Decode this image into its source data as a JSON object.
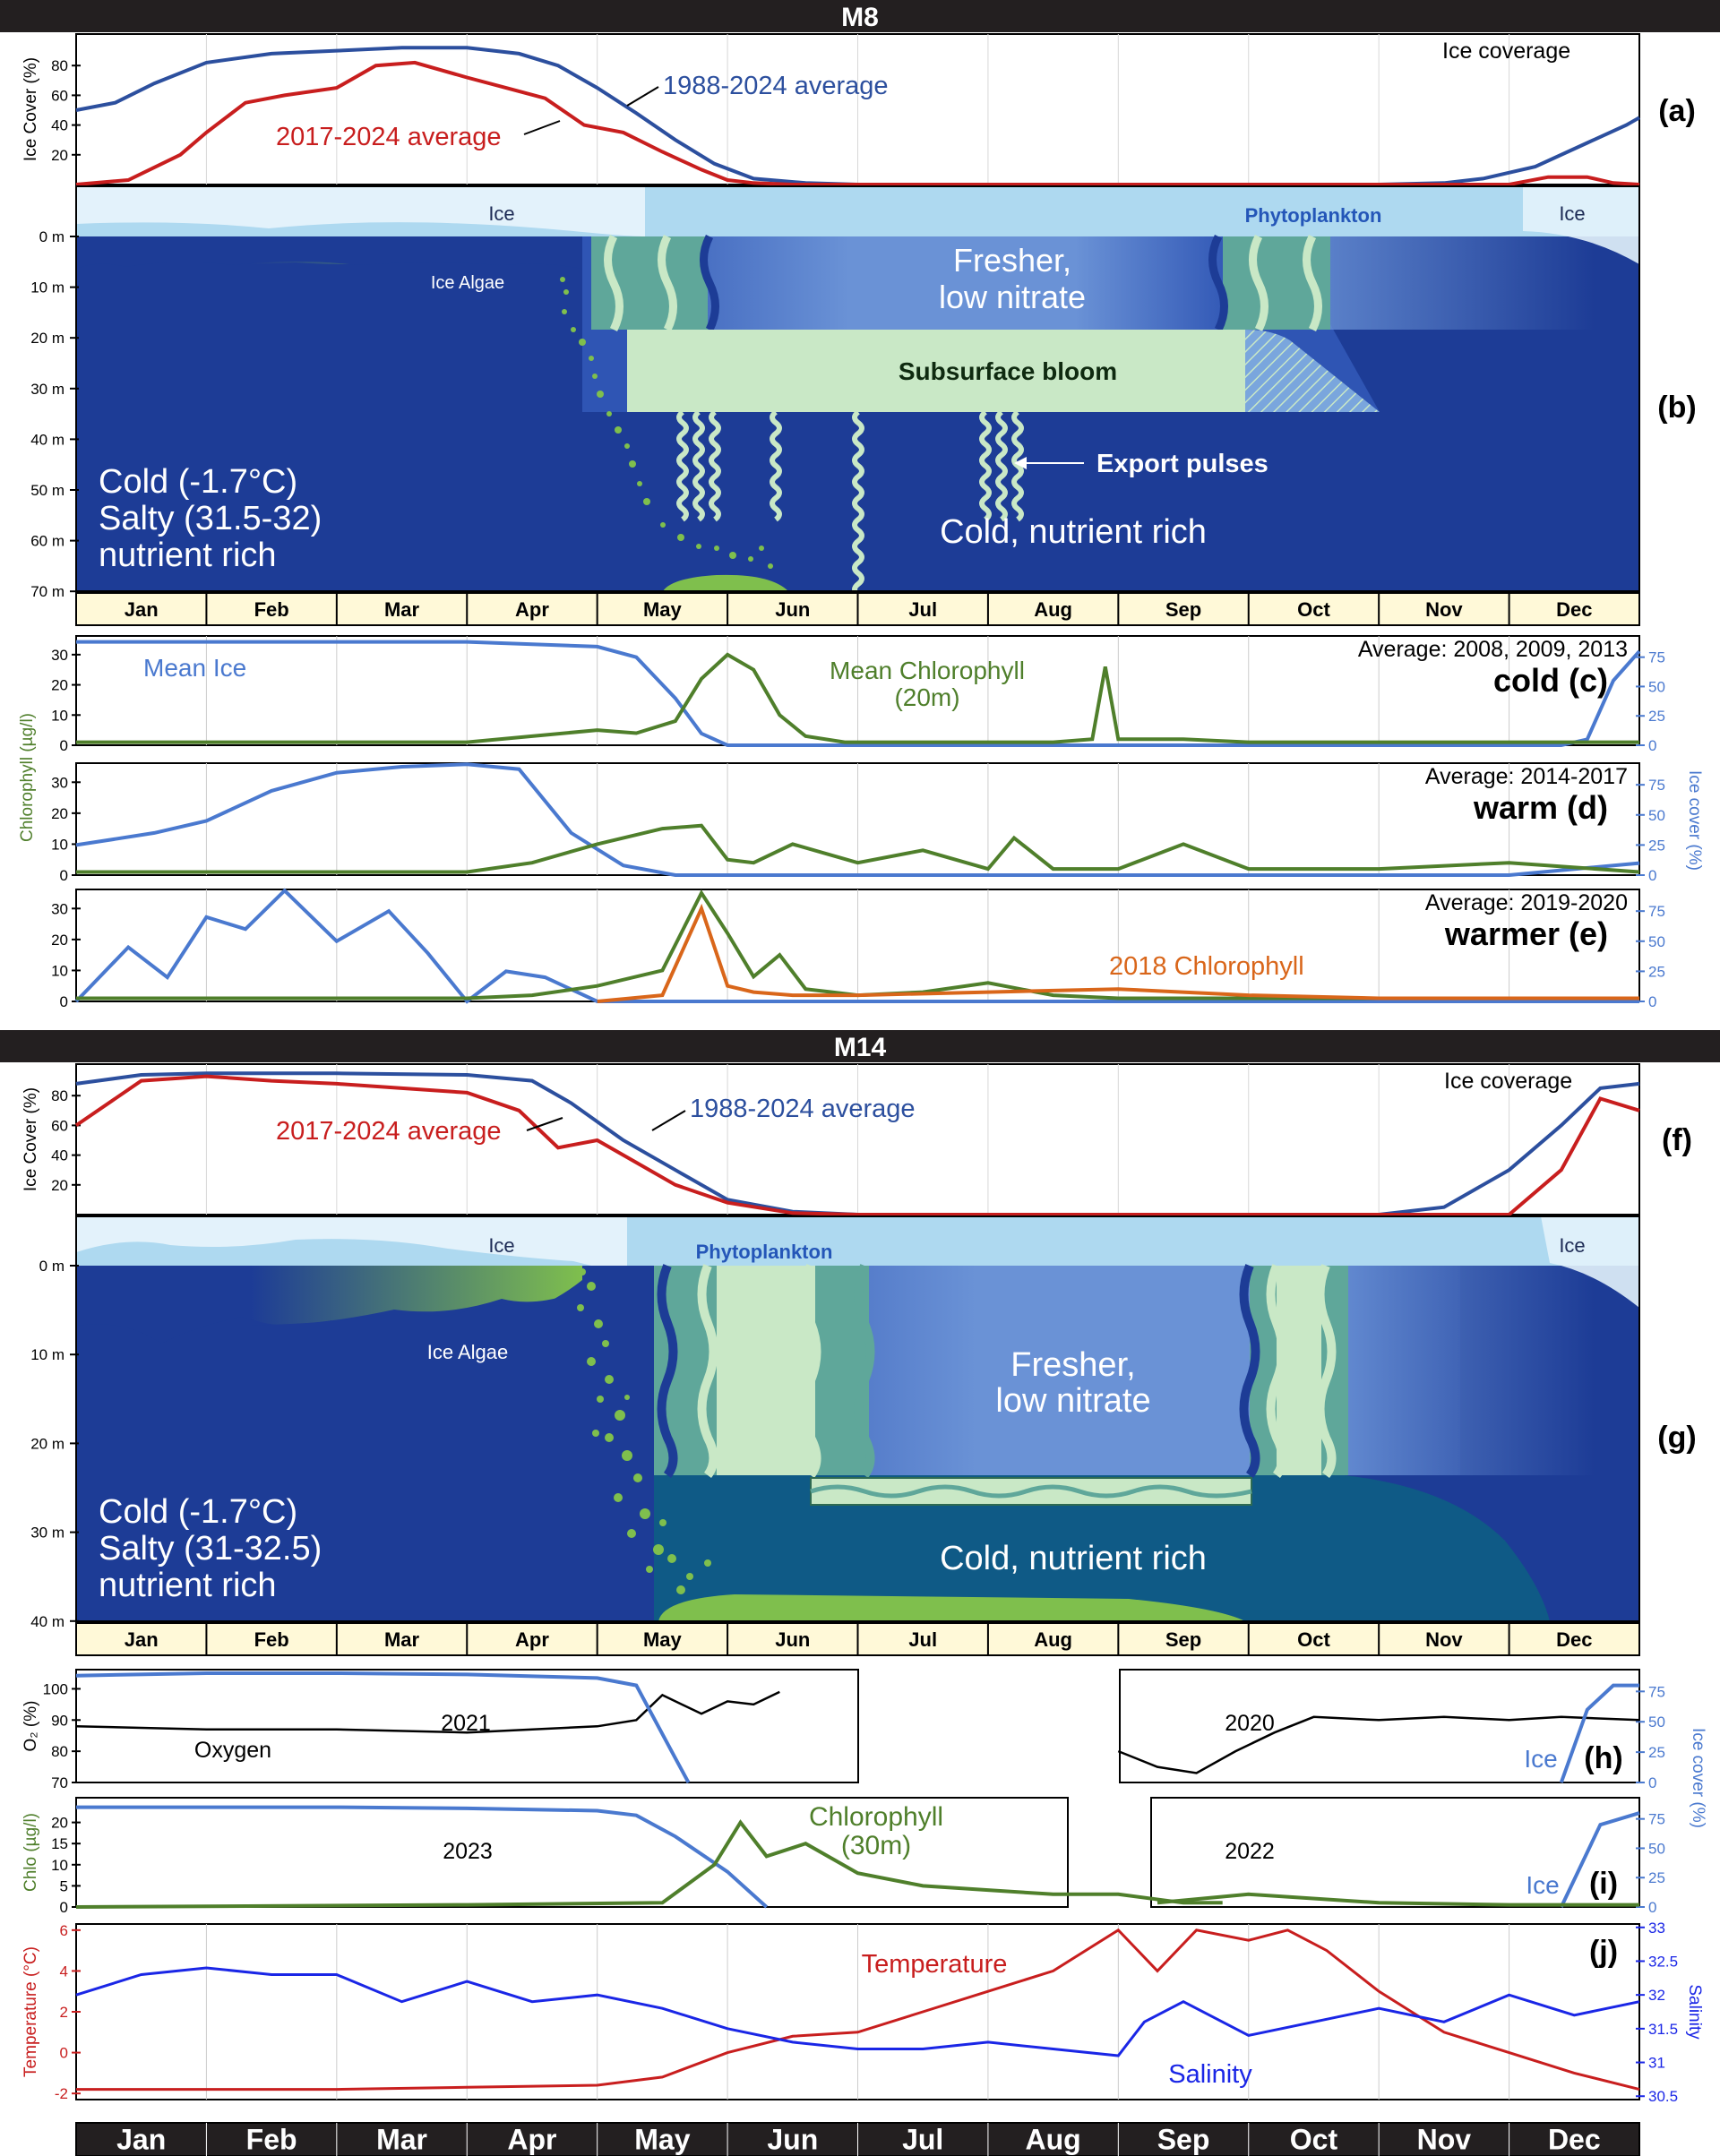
{
  "months": [
    "Jan",
    "Feb",
    "Mar",
    "Apr",
    "May",
    "Jun",
    "Jul",
    "Aug",
    "Sep",
    "Oct",
    "Nov",
    "Dec"
  ],
  "colors": {
    "deep_blue": "#1d3c96",
    "mid_blue": "#2f55b4",
    "light_blue": "#6c97d8",
    "ice_blue": "#aed9f0",
    "ice_pale": "#e3f2fb",
    "algae_green": "#7fbf4d",
    "bloom_green": "#c9e8c6",
    "teal": "#5fa79a",
    "red": "#c81e1e",
    "avg_blue": "#2c4f9e",
    "chl_green": "#4f7f2b",
    "ice_line": "#4a79cf",
    "orange": "#d9661a",
    "salinity_blue": "#1a26e6",
    "banner": "#231f20"
  },
  "m8": {
    "station": "M8",
    "panel_a": {
      "label": "(a)",
      "ylabel": "Ice Cover (%)",
      "yticks": [
        "80",
        "60",
        "40",
        "20"
      ],
      "corner_text": "Ice coverage",
      "legend_recent": "2017-2024 average",
      "legend_long": "1988-2024 average"
    },
    "panel_b": {
      "label": "(b)",
      "depth_ticks": [
        "0 m",
        "10 m",
        "20 m",
        "30 m",
        "40 m",
        "50 m",
        "60 m",
        "70 m"
      ],
      "ice_left": "Ice",
      "ice_right": "Ice",
      "phyto": "Phytoplankton",
      "ice_algae": "Ice Algae",
      "fresher_1": "Fresher,",
      "fresher_2": "low nitrate",
      "subsurface": "Subsurface bloom",
      "export": "Export pulses",
      "deep_text": "Cold, nutrient rich",
      "cond_1": "Cold (-1.7°C)",
      "cond_2": "Salty (31.5-32)",
      "cond_3": "nutrient rich"
    },
    "panel_c": {
      "label": "cold  (c)",
      "average": "Average: 2008, 2009, 2013",
      "mean_ice": "Mean Ice",
      "chl_1": "Mean Chlorophyll",
      "chl_2": "(20m)"
    },
    "panel_d": {
      "label": "warm (d)",
      "average": "Average: 2014-2017"
    },
    "panel_e": {
      "label": "warmer (e)",
      "average": "Average: 2019-2020",
      "chl_2018": "2018 Chlorophyll"
    },
    "chl_yticks": [
      "30",
      "20",
      "10",
      "0"
    ],
    "ice_yticks": [
      "75",
      "50",
      "25",
      "0"
    ],
    "ylabel_left": "Chlorophyll (µg/l)",
    "ylabel_right": "Ice cover (%)"
  },
  "m14": {
    "station": "M14",
    "panel_f": {
      "label": "(f)",
      "ylabel": "Ice Cover (%)",
      "yticks": [
        "80",
        "60",
        "40",
        "20"
      ],
      "corner_text": "Ice coverage",
      "legend_recent": "2017-2024 average",
      "legend_long": "1988-2024 average"
    },
    "panel_g": {
      "label": "(g)",
      "depth_ticks": [
        "0 m",
        "10 m",
        "20 m",
        "30 m",
        "40 m"
      ],
      "ice_left": "Ice",
      "ice_right": "Ice",
      "phyto": "Phytoplankton",
      "ice_algae": "Ice Algae",
      "fresher_1": "Fresher,",
      "fresher_2": "low nitrate",
      "deep_text": "Cold, nutrient rich",
      "cond_1": "Cold (-1.7°C)",
      "cond_2": "Salty (31-32.5)",
      "cond_3": "nutrient rich"
    },
    "panel_h": {
      "label": "(h)",
      "ylabel": "O₂ (%)",
      "yticks": [
        "100",
        "90",
        "80",
        "70"
      ],
      "year_left": "2021",
      "year_right": "2020",
      "oxygen": "Oxygen",
      "ice": "Ice"
    },
    "panel_i": {
      "label": "(i)",
      "ylabel": "Chlo (µg/l)",
      "yticks": [
        "20",
        "15",
        "10",
        "5",
        "0"
      ],
      "year_left": "2023",
      "year_right": "2022",
      "chl_1": "Chlorophyll",
      "chl_2": "(30m)",
      "ice": "Ice"
    },
    "ice_right_label": "Ice cover (%)",
    "ice_yticks_h": [
      "75",
      "50",
      "25",
      "0"
    ],
    "ice_yticks_i": [
      "75",
      "50",
      "25",
      "0"
    ],
    "panel_j": {
      "label": "(j)",
      "ylabel_left": "Temperature (°C)",
      "ylabel_right": "Salinity",
      "temp_ticks": [
        "6",
        "4",
        "2",
        "0",
        "-2"
      ],
      "sal_ticks": [
        "33",
        "32.5",
        "32",
        "31.5",
        "31",
        "30.5"
      ],
      "temperature": "Temperature",
      "salinity": "Salinity"
    }
  },
  "chart_data": [
    {
      "type": "line",
      "title": "M8 (a) Ice coverage",
      "ylabel": "Ice Cover (%)",
      "ylim": [
        0,
        100
      ],
      "x_unit": "month (1=Jan ... 13=end of Dec)",
      "series": [
        {
          "name": "1988-2024 average",
          "x": [
            1,
            1.3,
            1.6,
            2,
            2.5,
            3,
            3.5,
            4,
            4.4,
            4.7,
            5,
            5.3,
            5.6,
            5.9,
            6.2,
            6.6,
            7,
            8,
            9,
            10,
            11,
            11.5,
            11.8,
            12.2,
            12.6,
            12.9,
            13
          ],
          "y": [
            50,
            55,
            68,
            82,
            88,
            90,
            92,
            92,
            88,
            80,
            65,
            48,
            30,
            14,
            4,
            1,
            0,
            0,
            0,
            0,
            0,
            1,
            4,
            12,
            28,
            40,
            45
          ]
        },
        {
          "name": "2017-2024 average",
          "x": [
            1,
            1.4,
            1.8,
            2,
            2.3,
            2.6,
            3,
            3.3,
            3.6,
            4,
            4.3,
            4.6,
            4.9,
            5.2,
            5.5,
            5.8,
            6,
            6.2,
            6.5,
            7,
            8,
            9,
            10,
            11,
            12,
            12.3,
            12.6,
            12.8,
            13
          ],
          "y": [
            0,
            3,
            20,
            35,
            55,
            60,
            65,
            80,
            82,
            72,
            65,
            58,
            40,
            35,
            22,
            10,
            3,
            1,
            0,
            0,
            0,
            0,
            0,
            0,
            0,
            5,
            5,
            1,
            0
          ]
        }
      ]
    },
    {
      "type": "line",
      "title": "M8 (c) cold — Average: 2008, 2009, 2013",
      "ylabel": "Chlorophyll (µg/l)",
      "ylim": [
        0,
        35
      ],
      "y2label": "Ice cover (%)",
      "y2lim": [
        0,
        90
      ],
      "series": [
        {
          "name": "Mean Ice",
          "axis": "right",
          "x": [
            1,
            2,
            3,
            4,
            5,
            5.3,
            5.6,
            5.8,
            6,
            7,
            12,
            12.4,
            12.6,
            12.8,
            13
          ],
          "y": [
            88,
            88,
            88,
            88,
            84,
            75,
            40,
            10,
            0,
            0,
            0,
            0,
            5,
            55,
            80
          ]
        },
        {
          "name": "Mean Chlorophyll (20m)",
          "axis": "left",
          "x": [
            1,
            2,
            3,
            4,
            4.5,
            5,
            5.3,
            5.6,
            5.8,
            6,
            6.2,
            6.4,
            6.6,
            6.9,
            7.5,
            8.5,
            8.8,
            8.9,
            9,
            9.5,
            10,
            11,
            12,
            13
          ],
          "y": [
            1,
            1,
            1,
            1,
            3,
            5,
            4,
            8,
            22,
            30,
            25,
            10,
            3,
            1,
            1,
            1,
            2,
            26,
            2,
            2,
            1,
            1,
            1,
            1
          ]
        }
      ]
    },
    {
      "type": "line",
      "title": "M8 (d) warm — Average: 2014-2017",
      "ylabel": "Chlorophyll (µg/l)",
      "ylim": [
        0,
        35
      ],
      "y2label": "Ice cover (%)",
      "y2lim": [
        0,
        90
      ],
      "series": [
        {
          "name": "Ice",
          "axis": "right",
          "x": [
            1,
            1.3,
            1.6,
            2,
            2.5,
            3,
            3.5,
            4,
            4.4,
            4.8,
            5.2,
            5.6,
            6,
            7,
            12,
            12.5,
            13
          ],
          "y": [
            25,
            30,
            35,
            45,
            70,
            85,
            90,
            92,
            88,
            35,
            8,
            0,
            0,
            0,
            0,
            5,
            10
          ]
        },
        {
          "name": "Chlorophyll",
          "axis": "left",
          "x": [
            1,
            2,
            3,
            4,
            4.5,
            5,
            5.5,
            5.8,
            6,
            6.2,
            6.5,
            7,
            7.5,
            8,
            8.2,
            8.5,
            9,
            9.5,
            10,
            11,
            12,
            13
          ],
          "y": [
            1,
            1,
            1,
            1,
            4,
            10,
            15,
            16,
            5,
            4,
            10,
            4,
            8,
            2,
            12,
            2,
            2,
            10,
            2,
            2,
            4,
            1
          ]
        }
      ]
    },
    {
      "type": "line",
      "title": "M8 (e) warmer — Average: 2019-2020",
      "ylabel": "Chlorophyll (µg/l)",
      "ylim": [
        0,
        35
      ],
      "y2label": "Ice cover (%)",
      "y2lim": [
        0,
        90
      ],
      "series": [
        {
          "name": "Ice",
          "axis": "right",
          "x": [
            1,
            1.4,
            1.7,
            2,
            2.3,
            2.6,
            3,
            3.4,
            3.7,
            4,
            4.3,
            4.6,
            5,
            5.2,
            12.9,
            13
          ],
          "y": [
            0,
            45,
            20,
            70,
            60,
            92,
            50,
            75,
            40,
            0,
            25,
            20,
            0,
            0,
            0,
            0
          ]
        },
        {
          "name": "Chlorophyll",
          "axis": "left",
          "x": [
            1,
            2,
            3,
            4,
            4.5,
            5,
            5.5,
            5.8,
            6,
            6.2,
            6.4,
            6.6,
            6.8,
            7,
            7.5,
            8,
            8.5,
            9,
            10,
            11,
            12,
            13
          ],
          "y": [
            1,
            1,
            1,
            1,
            2,
            5,
            10,
            35,
            22,
            8,
            15,
            4,
            3,
            2,
            3,
            6,
            2,
            1,
            1,
            1,
            1,
            1
          ]
        },
        {
          "name": "2018 Chlorophyll",
          "axis": "left",
          "x": [
            5,
            5.5,
            5.8,
            6,
            6.2,
            6.5,
            7,
            8,
            9,
            10,
            11,
            12,
            13
          ],
          "y": [
            0,
            2,
            30,
            5,
            3,
            2,
            2,
            3,
            4,
            2,
            1,
            1,
            1
          ]
        }
      ]
    },
    {
      "type": "line",
      "title": "M14 (f) Ice coverage",
      "ylabel": "Ice Cover (%)",
      "ylim": [
        0,
        100
      ],
      "series": [
        {
          "name": "1988-2024 average",
          "x": [
            1,
            1.5,
            2,
            3,
            4,
            4.5,
            4.8,
            5.2,
            5.6,
            6,
            6.5,
            7,
            10,
            11,
            11.5,
            12,
            12.4,
            12.7,
            13
          ],
          "y": [
            88,
            94,
            95,
            95,
            94,
            90,
            75,
            50,
            30,
            10,
            2,
            0,
            0,
            0,
            5,
            30,
            60,
            85,
            88
          ]
        },
        {
          "name": "2017-2024 average",
          "x": [
            1,
            1.5,
            2,
            2.5,
            3,
            3.5,
            4,
            4.4,
            4.7,
            5,
            5.3,
            5.6,
            6,
            6.5,
            7,
            10,
            11,
            12,
            12.4,
            12.7,
            13
          ],
          "y": [
            60,
            90,
            93,
            90,
            88,
            85,
            82,
            70,
            45,
            50,
            35,
            20,
            8,
            1,
            0,
            0,
            0,
            0,
            30,
            78,
            70
          ]
        }
      ]
    },
    {
      "type": "line",
      "title": "M14 (h) Oxygen and Ice",
      "ylabel": "O₂ (%)",
      "ylim": [
        70,
        105
      ],
      "series": [
        {
          "name": "Oxygen 2021",
          "axis": "left",
          "x": [
            1,
            2,
            3,
            4,
            5,
            5.3,
            5.5,
            5.8,
            6,
            6.2,
            6.4
          ],
          "y": [
            88,
            87,
            87,
            86,
            88,
            90,
            98,
            92,
            96,
            95,
            99
          ]
        },
        {
          "name": "Ice 2021",
          "axis": "right",
          "x": [
            1,
            2,
            3,
            4,
            5,
            5.3,
            5.6,
            5.7
          ],
          "y": [
            88,
            90,
            90,
            89,
            86,
            80,
            20,
            0
          ]
        },
        {
          "name": "Oxygen 2020",
          "axis": "left",
          "x": [
            9,
            9.3,
            9.6,
            9.9,
            10.2,
            10.5,
            11,
            11.5,
            12,
            12.4,
            13
          ],
          "y": [
            80,
            75,
            73,
            80,
            86,
            91,
            90,
            91,
            90,
            91,
            90
          ]
        },
        {
          "name": "Ice 2020",
          "axis": "right",
          "x": [
            12.4,
            12.6,
            12.8,
            13
          ],
          "y": [
            0,
            60,
            80,
            80
          ]
        }
      ]
    },
    {
      "type": "line",
      "title": "M14 (i) Chlorophyll and Ice",
      "ylabel": "Chlo (µg/l)",
      "ylim": [
        0,
        25
      ],
      "series": [
        {
          "name": "Ice 2023",
          "axis": "right",
          "x": [
            1,
            2,
            3,
            4,
            5,
            5.3,
            5.6,
            6,
            6.3
          ],
          "y": [
            85,
            85,
            85,
            84,
            82,
            78,
            60,
            30,
            0
          ]
        },
        {
          "name": "Chlorophyll (30m) 2023",
          "axis": "left",
          "x": [
            1,
            4,
            5.5,
            5.9,
            6.1,
            6.3,
            6.6,
            7,
            7.5,
            8,
            8.5,
            9,
            9.5,
            9.8
          ],
          "y": [
            0,
            0.5,
            1,
            10,
            20,
            12,
            15,
            8,
            5,
            4,
            3,
            3,
            1,
            1
          ]
        },
        {
          "name": "Ice 2022",
          "axis": "right",
          "x": [
            12.4,
            12.7,
            13
          ],
          "y": [
            0,
            70,
            80
          ]
        },
        {
          "name": "Chlorophyll 2022",
          "axis": "left",
          "x": [
            9.3,
            10,
            11,
            12,
            13
          ],
          "y": [
            1,
            3,
            1,
            0.5,
            0.5
          ]
        }
      ]
    },
    {
      "type": "line",
      "title": "M14 (j) Temperature and Salinity",
      "ylabel": "Temperature (°C)",
      "ylim": [
        -2,
        6
      ],
      "y2label": "Salinity",
      "y2lim": [
        30.5,
        33
      ],
      "series": [
        {
          "name": "Temperature",
          "axis": "left",
          "x": [
            1,
            2,
            3,
            4,
            5,
            5.5,
            6,
            6.5,
            7,
            7.5,
            8,
            8.5,
            9,
            9.3,
            9.6,
            10,
            10.3,
            10.6,
            11,
            11.5,
            12,
            12.5,
            13
          ],
          "y": [
            -1.8,
            -1.8,
            -1.8,
            -1.7,
            -1.6,
            -1.2,
            0,
            0.8,
            1,
            2,
            3,
            4,
            6,
            4,
            6,
            5.5,
            6,
            5,
            3,
            1,
            0,
            -1,
            -1.8
          ]
        },
        {
          "name": "Salinity",
          "axis": "right",
          "x": [
            1,
            1.5,
            2,
            2.5,
            3,
            3.5,
            4,
            4.5,
            5,
            5.5,
            6,
            6.5,
            7,
            7.5,
            8,
            8.5,
            9,
            9.2,
            9.5,
            10,
            10.5,
            11,
            11.5,
            12,
            12.5,
            13
          ],
          "y": [
            32,
            32.3,
            32.4,
            32.3,
            32.3,
            31.9,
            32.2,
            31.9,
            32,
            31.8,
            31.5,
            31.3,
            31.2,
            31.2,
            31.3,
            31.2,
            31.1,
            31.6,
            31.9,
            31.4,
            31.6,
            31.8,
            31.6,
            32,
            31.7,
            31.9
          ]
        }
      ]
    }
  ]
}
